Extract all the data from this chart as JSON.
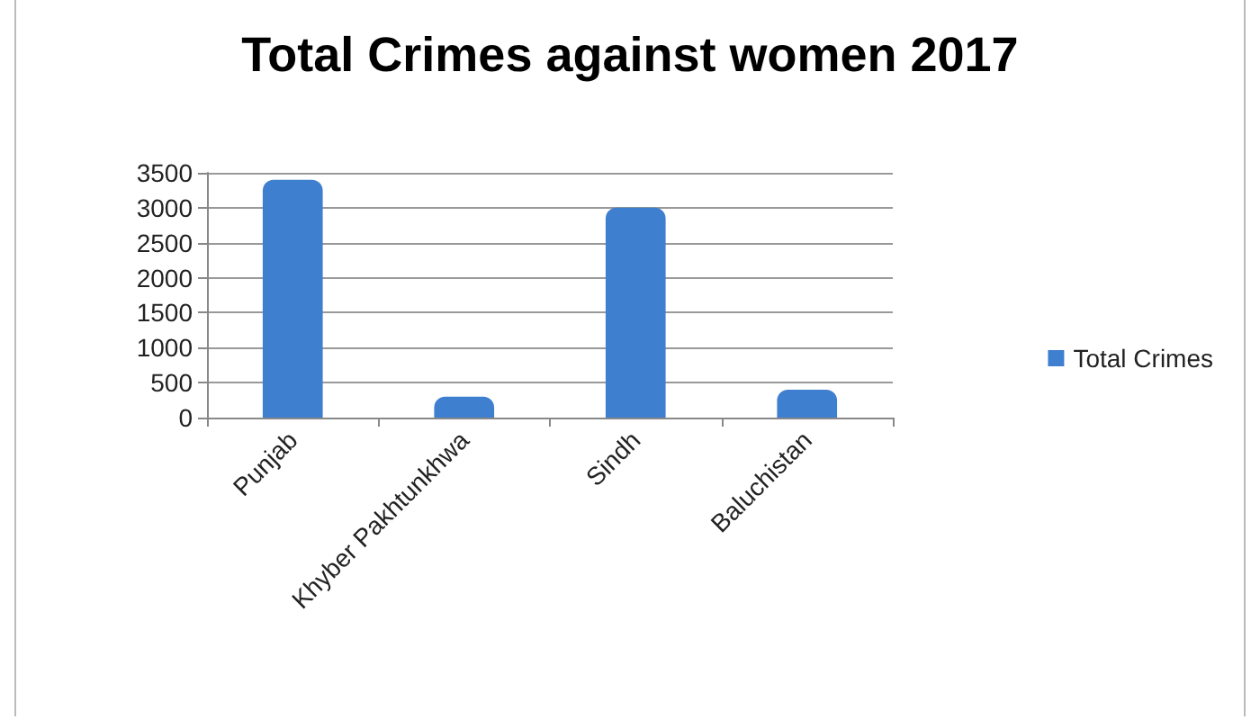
{
  "chart_data": {
    "type": "bar",
    "title": "Total Crimes against women 2017",
    "categories": [
      "Punjab",
      "Khyber Pakhtunkhwa",
      "Sindh",
      "Baluchistan"
    ],
    "series": [
      {
        "name": "Total Crimes",
        "color": "#3f7fcf",
        "values": [
          3400,
          300,
          3000,
          400
        ]
      }
    ],
    "ylim": [
      0,
      3500
    ],
    "yticks": [
      0,
      500,
      1000,
      1500,
      2000,
      2500,
      3000,
      3500
    ],
    "grid": "y",
    "legend": "right"
  }
}
